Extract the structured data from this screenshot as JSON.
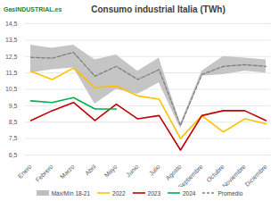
{
  "chart_data": {
    "type": "line",
    "title": "Consumo industrial Italia (TWh)",
    "annotations": [
      "GasINDUSTRIAL.es"
    ],
    "categories": [
      "Enero",
      "Febrero",
      "Marzo",
      "Abril",
      "Mayo",
      "Junio",
      "Julio",
      "Agosto",
      "Septiembre",
      "Octubre",
      "Noviembre",
      "Diciembre"
    ],
    "ylim": [
      6.5,
      14.5
    ],
    "yticks": [
      {
        "value": 6.5,
        "label": "6,5"
      },
      {
        "value": 7.5,
        "label": "7,5"
      },
      {
        "value": 8.5,
        "label": "8,5"
      },
      {
        "value": 9.5,
        "label": "9,5"
      },
      {
        "value": 10.5,
        "label": "10,5"
      },
      {
        "value": 11.5,
        "label": "11,5"
      },
      {
        "value": 12.5,
        "label": "12,5"
      },
      {
        "value": 13.5,
        "label": "13,5"
      },
      {
        "value": 14.5,
        "label": "14,5"
      }
    ],
    "grid": true,
    "legend": "bottom",
    "series": [
      {
        "name": "Máx/Mín 18-21",
        "type": "band",
        "color": "#bfbfbf",
        "high": [
          13.2,
          13.0,
          13.2,
          12.3,
          12.6,
          11.6,
          12.4,
          8.4,
          11.6,
          12.5,
          12.4,
          12.3
        ],
        "low": [
          11.5,
          11.7,
          11.8,
          9.6,
          10.5,
          10.2,
          10.9,
          8.1,
          11.3,
          11.4,
          11.6,
          11.5
        ]
      },
      {
        "name": "2022",
        "type": "line",
        "color": "#ffc000",
        "values": [
          11.6,
          11.1,
          11.8,
          10.6,
          10.7,
          10.1,
          9.9,
          7.5,
          8.9,
          7.9,
          8.7,
          8.4
        ]
      },
      {
        "name": "2023",
        "type": "line",
        "color": "#c00000",
        "values": [
          8.6,
          9.2,
          9.7,
          8.6,
          9.6,
          8.7,
          8.9,
          6.8,
          8.9,
          9.2,
          9.2,
          8.6
        ]
      },
      {
        "name": "2024",
        "type": "line",
        "color": "#00b050",
        "values": [
          9.8,
          9.7,
          10.0,
          9.3,
          9.3,
          null,
          null,
          null,
          null,
          null,
          null,
          null
        ]
      },
      {
        "name": "Promedio",
        "type": "line",
        "color": "#7f7f7f",
        "line_style": "dashed",
        "values": [
          12.45,
          12.4,
          12.75,
          11.3,
          11.9,
          11.1,
          11.7,
          8.3,
          11.4,
          11.9,
          12.0,
          11.9
        ]
      }
    ]
  }
}
